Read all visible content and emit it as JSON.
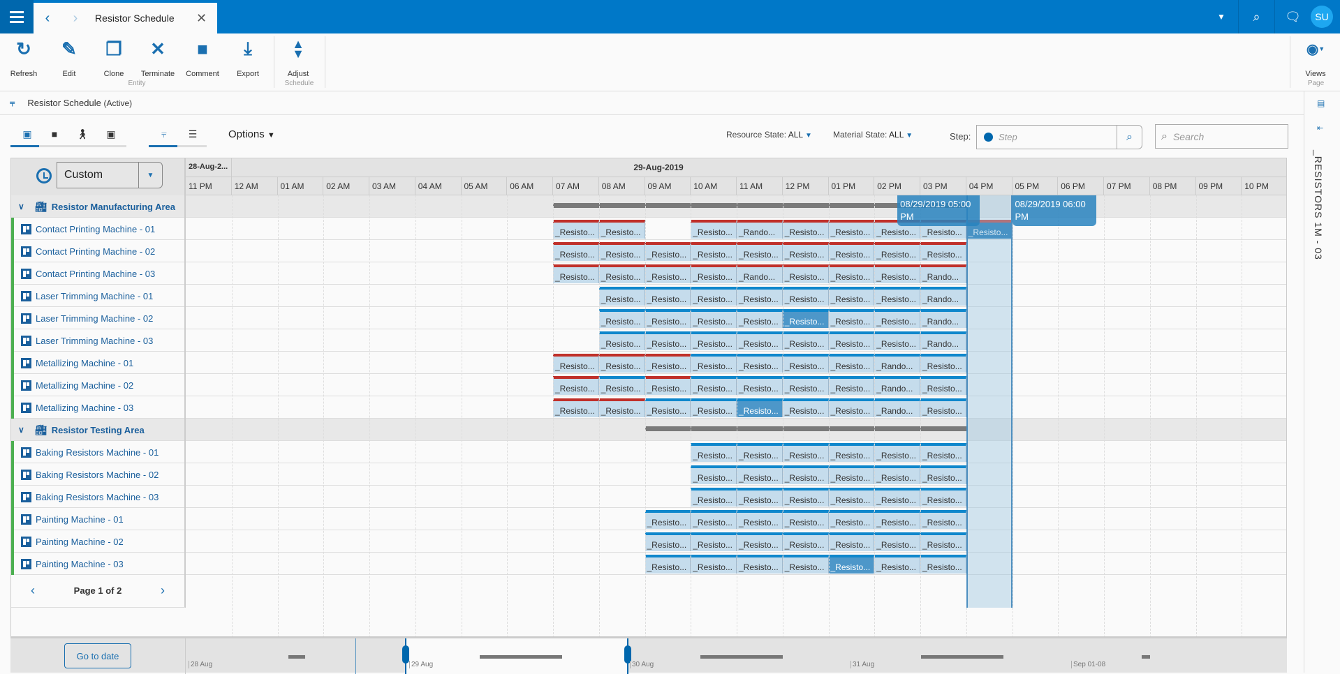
{
  "app": {
    "tab_title": "Resistor Schedule",
    "avatar": "SU"
  },
  "toolbar": {
    "buttons": [
      {
        "label": "Refresh",
        "icon": "refresh-icon"
      },
      {
        "label": "Edit",
        "icon": "pencil-icon"
      },
      {
        "label": "Clone",
        "icon": "clone-icon"
      },
      {
        "label": "Terminate",
        "icon": "x-icon"
      },
      {
        "label": "Comment",
        "icon": "comment-icon"
      },
      {
        "label": "Export",
        "icon": "export-icon"
      },
      {
        "label": "Adjust",
        "icon": "adjust-icon"
      }
    ],
    "groups": {
      "entity": "Entity",
      "schedule": "Schedule",
      "page": "Page"
    },
    "views_label": "Views"
  },
  "breadcrumb": {
    "title": "Resistor Schedule",
    "state": "(Active)"
  },
  "filters": {
    "options": "Options",
    "resource_state_label": "Resource State:",
    "resource_state": "ALL",
    "material_state_label": "Material State:",
    "material_state": "ALL",
    "step_label": "Step:",
    "step_placeholder": "Step",
    "search_placeholder": "Search"
  },
  "side_panel": {
    "title": "_RESISTORS 1M - 03"
  },
  "gantt": {
    "range_select": "Custom",
    "dates": [
      "28-Aug-2...",
      "29-Aug-2019"
    ],
    "hours": [
      "11 PM",
      "12 AM",
      "01 AM",
      "02 AM",
      "03 AM",
      "04 AM",
      "05 AM",
      "06 AM",
      "07 AM",
      "08 AM",
      "09 AM",
      "10 AM",
      "11 AM",
      "12 PM",
      "01 PM",
      "02 PM",
      "03 PM",
      "04 PM",
      "05 PM",
      "06 PM",
      "07 PM",
      "08 PM",
      "09 PM",
      "10 PM"
    ],
    "highlight_hour": "04 PM",
    "tooltips": [
      "08/29/2019 05:00 PM",
      "08/29/2019 06:00 PM"
    ],
    "rows": [
      {
        "type": "group",
        "name": "Resistor Manufacturing Area",
        "bar": [
          "07 AM",
          "04 PM"
        ]
      },
      {
        "type": "machine",
        "name": "Contact Printing Machine - 01",
        "tasks": [
          [
            "07 AM",
            "_Resisto...",
            "red"
          ],
          [
            "08 AM",
            "_Resisto...",
            "red"
          ],
          [
            "10 AM",
            "_Resisto...",
            "red"
          ],
          [
            "11 AM",
            "_Rando...",
            "red"
          ],
          [
            "12 PM",
            "_Resisto...",
            "red"
          ],
          [
            "01 PM",
            "_Resisto...",
            "red"
          ],
          [
            "02 PM",
            "_Resisto...",
            "red"
          ],
          [
            "03 PM",
            "_Resisto...",
            "red"
          ],
          [
            "04 PM",
            "_Resisto...",
            "red",
            "dark"
          ]
        ]
      },
      {
        "type": "machine",
        "name": "Contact Printing Machine - 02",
        "tasks": [
          [
            "07 AM",
            "_Resisto...",
            "red"
          ],
          [
            "08 AM",
            "_Resisto...",
            "red"
          ],
          [
            "09 AM",
            "_Resisto...",
            "red"
          ],
          [
            "10 AM",
            "_Resisto...",
            "red"
          ],
          [
            "11 AM",
            "_Resisto...",
            "red"
          ],
          [
            "12 PM",
            "_Resisto...",
            "red"
          ],
          [
            "01 PM",
            "_Resisto...",
            "red"
          ],
          [
            "02 PM",
            "_Resisto...",
            "red"
          ],
          [
            "03 PM",
            "_Resisto...",
            "red"
          ]
        ]
      },
      {
        "type": "machine",
        "name": "Contact Printing Machine - 03",
        "tasks": [
          [
            "07 AM",
            "_Resisto...",
            "red"
          ],
          [
            "08 AM",
            "_Resisto...",
            "red"
          ],
          [
            "09 AM",
            "_Resisto...",
            "red"
          ],
          [
            "10 AM",
            "_Resisto...",
            "red"
          ],
          [
            "11 AM",
            "_Rando...",
            "red"
          ],
          [
            "12 PM",
            "_Resisto...",
            "red"
          ],
          [
            "01 PM",
            "_Resisto...",
            "red"
          ],
          [
            "02 PM",
            "_Resisto...",
            "red"
          ],
          [
            "03 PM",
            "_Rando...",
            "red"
          ]
        ]
      },
      {
        "type": "machine",
        "name": "Laser Trimming Machine - 01",
        "tasks": [
          [
            "08 AM",
            "_Resisto...",
            "blue"
          ],
          [
            "09 AM",
            "_Resisto...",
            "blue"
          ],
          [
            "10 AM",
            "_Resisto...",
            "blue"
          ],
          [
            "11 AM",
            "_Resisto...",
            "blue"
          ],
          [
            "12 PM",
            "_Resisto...",
            "blue"
          ],
          [
            "01 PM",
            "_Resisto...",
            "blue"
          ],
          [
            "02 PM",
            "_Resisto...",
            "blue"
          ],
          [
            "03 PM",
            "_Rando...",
            "blue"
          ]
        ]
      },
      {
        "type": "machine",
        "name": "Laser Trimming Machine - 02",
        "tasks": [
          [
            "08 AM",
            "_Resisto...",
            "blue"
          ],
          [
            "09 AM",
            "_Resisto...",
            "blue"
          ],
          [
            "10 AM",
            "_Resisto...",
            "blue"
          ],
          [
            "11 AM",
            "_Resisto...",
            "blue"
          ],
          [
            "12 PM",
            "_Resisto...",
            "blue",
            "sel"
          ],
          [
            "01 PM",
            "_Resisto...",
            "blue"
          ],
          [
            "02 PM",
            "_Resisto...",
            "blue"
          ],
          [
            "03 PM",
            "_Rando...",
            "blue"
          ]
        ]
      },
      {
        "type": "machine",
        "name": "Laser Trimming Machine - 03",
        "tasks": [
          [
            "08 AM",
            "_Resisto...",
            "blue"
          ],
          [
            "09 AM",
            "_Resisto...",
            "blue"
          ],
          [
            "10 AM",
            "_Resisto...",
            "blue"
          ],
          [
            "11 AM",
            "_Resisto...",
            "blue"
          ],
          [
            "12 PM",
            "_Resisto...",
            "blue"
          ],
          [
            "01 PM",
            "_Resisto...",
            "blue"
          ],
          [
            "02 PM",
            "_Resisto...",
            "blue"
          ],
          [
            "03 PM",
            "_Rando...",
            "blue"
          ]
        ]
      },
      {
        "type": "machine",
        "name": "Metallizing Machine - 01",
        "tasks": [
          [
            "07 AM",
            "_Resisto...",
            "red"
          ],
          [
            "08 AM",
            "_Resisto...",
            "red"
          ],
          [
            "09 AM",
            "_Resisto...",
            "red"
          ],
          [
            "10 AM",
            "_Resisto...",
            "blue"
          ],
          [
            "11 AM",
            "_Resisto...",
            "blue"
          ],
          [
            "12 PM",
            "_Resisto...",
            "blue"
          ],
          [
            "01 PM",
            "_Resisto...",
            "blue"
          ],
          [
            "02 PM",
            "_Rando...",
            "blue"
          ],
          [
            "03 PM",
            "_Resisto...",
            "blue"
          ]
        ]
      },
      {
        "type": "machine",
        "name": "Metallizing Machine - 02",
        "tasks": [
          [
            "07 AM",
            "_Resisto...",
            "red"
          ],
          [
            "08 AM",
            "_Resisto...",
            "blue"
          ],
          [
            "09 AM",
            "_Resisto...",
            "red"
          ],
          [
            "10 AM",
            "_Resisto...",
            "blue"
          ],
          [
            "11 AM",
            "_Resisto...",
            "blue"
          ],
          [
            "12 PM",
            "_Resisto...",
            "blue"
          ],
          [
            "01 PM",
            "_Resisto...",
            "blue"
          ],
          [
            "02 PM",
            "_Rando...",
            "blue"
          ],
          [
            "03 PM",
            "_Resisto...",
            "blue"
          ]
        ]
      },
      {
        "type": "machine",
        "name": "Metallizing Machine - 03",
        "tasks": [
          [
            "07 AM",
            "_Resisto...",
            "red"
          ],
          [
            "08 AM",
            "_Resisto...",
            "red"
          ],
          [
            "09 AM",
            "_Resisto...",
            "blue"
          ],
          [
            "10 AM",
            "_Resisto...",
            "blue"
          ],
          [
            "11 AM",
            "_Resisto...",
            "blue",
            "sel"
          ],
          [
            "12 PM",
            "_Resisto...",
            "blue"
          ],
          [
            "01 PM",
            "_Resisto...",
            "blue"
          ],
          [
            "02 PM",
            "_Rando...",
            "blue"
          ],
          [
            "03 PM",
            "_Resisto...",
            "blue"
          ]
        ]
      },
      {
        "type": "group",
        "name": "Resistor Testing Area",
        "bar": [
          "09 AM",
          "04 PM"
        ]
      },
      {
        "type": "machine",
        "name": "Baking Resistors Machine - 01",
        "tasks": [
          [
            "10 AM",
            "_Resisto...",
            "blue"
          ],
          [
            "11 AM",
            "_Resisto...",
            "blue"
          ],
          [
            "12 PM",
            "_Resisto...",
            "blue"
          ],
          [
            "01 PM",
            "_Resisto...",
            "blue"
          ],
          [
            "02 PM",
            "_Resisto...",
            "blue"
          ],
          [
            "03 PM",
            "_Resisto...",
            "blue"
          ]
        ]
      },
      {
        "type": "machine",
        "name": "Baking Resistors Machine - 02",
        "tasks": [
          [
            "10 AM",
            "_Resisto...",
            "blue"
          ],
          [
            "11 AM",
            "_Resisto...",
            "blue"
          ],
          [
            "12 PM",
            "_Resisto...",
            "blue"
          ],
          [
            "01 PM",
            "_Resisto...",
            "blue"
          ],
          [
            "02 PM",
            "_Resisto...",
            "blue"
          ],
          [
            "03 PM",
            "_Resisto...",
            "blue"
          ]
        ]
      },
      {
        "type": "machine",
        "name": "Baking Resistors Machine - 03",
        "tasks": [
          [
            "10 AM",
            "_Resisto...",
            "blue"
          ],
          [
            "11 AM",
            "_Resisto...",
            "blue"
          ],
          [
            "12 PM",
            "_Resisto...",
            "blue"
          ],
          [
            "01 PM",
            "_Resisto...",
            "blue"
          ],
          [
            "02 PM",
            "_Resisto...",
            "blue"
          ],
          [
            "03 PM",
            "_Resisto...",
            "blue"
          ]
        ]
      },
      {
        "type": "machine",
        "name": "Painting Machine - 01",
        "tasks": [
          [
            "09 AM",
            "_Resisto...",
            "blue"
          ],
          [
            "10 AM",
            "_Resisto...",
            "blue"
          ],
          [
            "11 AM",
            "_Resisto...",
            "blue"
          ],
          [
            "12 PM",
            "_Resisto...",
            "blue"
          ],
          [
            "01 PM",
            "_Resisto...",
            "blue"
          ],
          [
            "02 PM",
            "_Resisto...",
            "blue"
          ],
          [
            "03 PM",
            "_Resisto...",
            "blue"
          ]
        ]
      },
      {
        "type": "machine",
        "name": "Painting Machine - 02",
        "tasks": [
          [
            "09 AM",
            "_Resisto...",
            "blue"
          ],
          [
            "10 AM",
            "_Resisto...",
            "blue"
          ],
          [
            "11 AM",
            "_Resisto...",
            "blue"
          ],
          [
            "12 PM",
            "_Resisto...",
            "blue"
          ],
          [
            "01 PM",
            "_Resisto...",
            "blue"
          ],
          [
            "02 PM",
            "_Resisto...",
            "blue"
          ],
          [
            "03 PM",
            "_Resisto...",
            "blue"
          ]
        ]
      },
      {
        "type": "machine",
        "name": "Painting Machine - 03",
        "tasks": [
          [
            "09 AM",
            "_Resisto...",
            "blue"
          ],
          [
            "10 AM",
            "_Resisto...",
            "blue"
          ],
          [
            "11 AM",
            "_Resisto...",
            "blue"
          ],
          [
            "12 PM",
            "_Resisto...",
            "blue"
          ],
          [
            "01 PM",
            "_Resisto...",
            "blue",
            "sel"
          ],
          [
            "02 PM",
            "_Resisto...",
            "blue"
          ],
          [
            "03 PM",
            "_Resisto...",
            "blue"
          ]
        ]
      }
    ],
    "pager": "Page 1 of 2"
  },
  "navigator": {
    "goto_label": "Go to date",
    "labels": [
      "28 Aug",
      "29 Aug",
      "30 Aug",
      "31 Aug",
      "Sep 01-08"
    ]
  },
  "colors": {
    "brand": "#0078c8",
    "bar_red": "#c0302a",
    "bar_blue": "#0f87cc",
    "task_fill": "#c5dcec",
    "resource_ok": "#4caf50"
  }
}
